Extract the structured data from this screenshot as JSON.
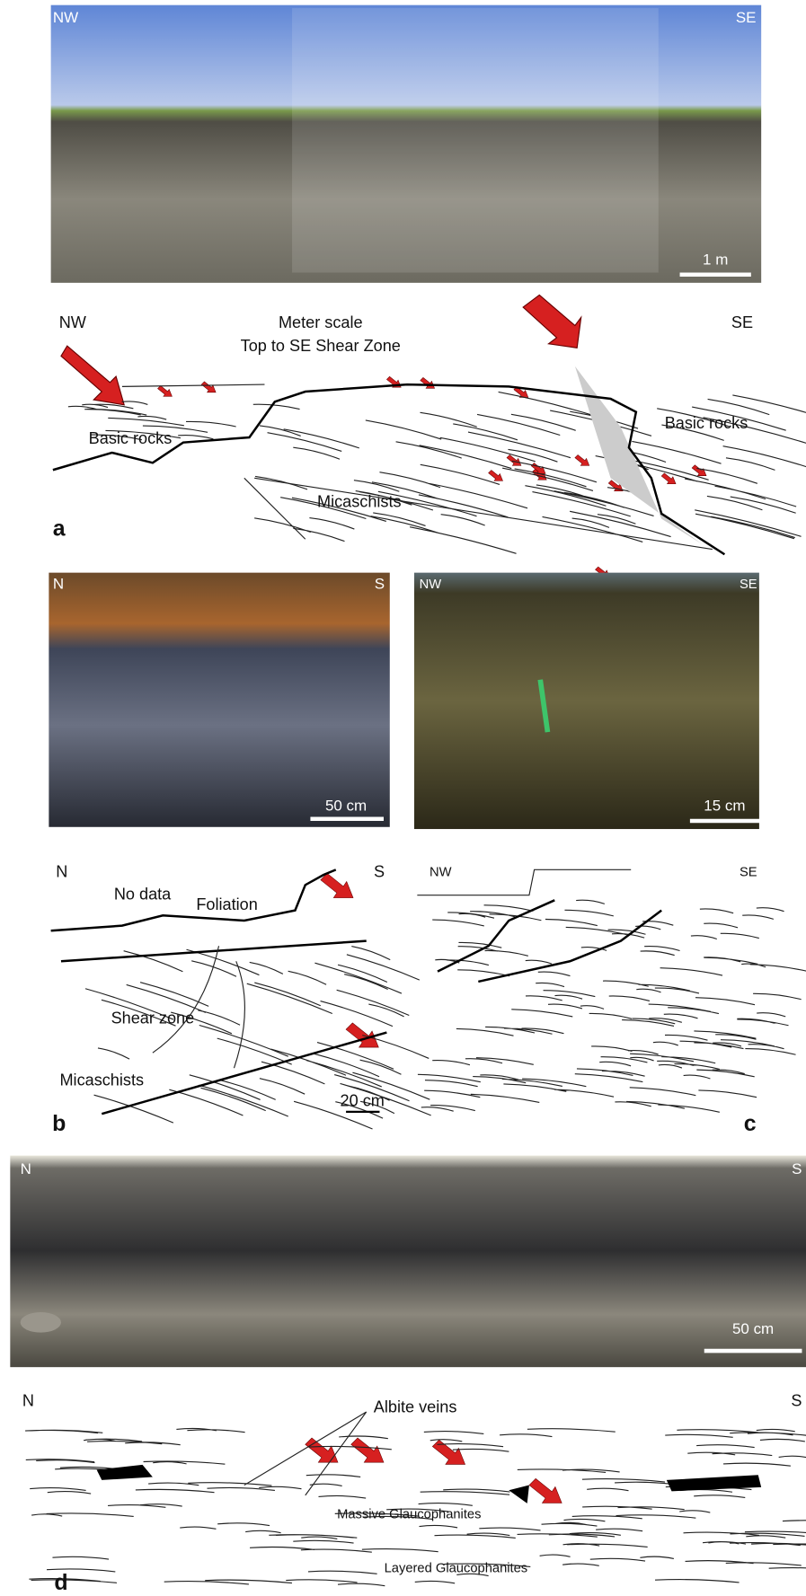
{
  "panel_a": {
    "photo": {
      "left": "NW",
      "right": "SE",
      "scale": "1 m"
    },
    "sketch": {
      "left": "NW",
      "right": "SE",
      "title": [
        "Meter scale",
        "Top to SE Shear Zone"
      ],
      "labels": [
        "Basic rocks",
        "Basic rocks",
        "Micaschists"
      ],
      "panel_label": "a"
    }
  },
  "panel_b": {
    "photo": {
      "left": "N",
      "right": "S",
      "scale": "50 cm"
    },
    "sketch": {
      "left": "N",
      "right": "S",
      "labels": [
        "No data",
        "Foliation",
        "Shear zone",
        "Micaschists"
      ],
      "scale": "20 cm",
      "panel_label": "b"
    }
  },
  "panel_c": {
    "photo": {
      "left": "NW",
      "right": "SE",
      "scale": "15 cm"
    },
    "sketch": {
      "left": "NW",
      "right": "SE",
      "panel_label": "c"
    }
  },
  "panel_d": {
    "photo": {
      "left": "N",
      "right": "S",
      "scale": "50 cm"
    },
    "sketch": {
      "left": "N",
      "right": "S",
      "labels": [
        "Albite veins",
        "Massive Glaucophanites",
        "Layered Glaucophanites"
      ],
      "panel_label": "d"
    }
  }
}
